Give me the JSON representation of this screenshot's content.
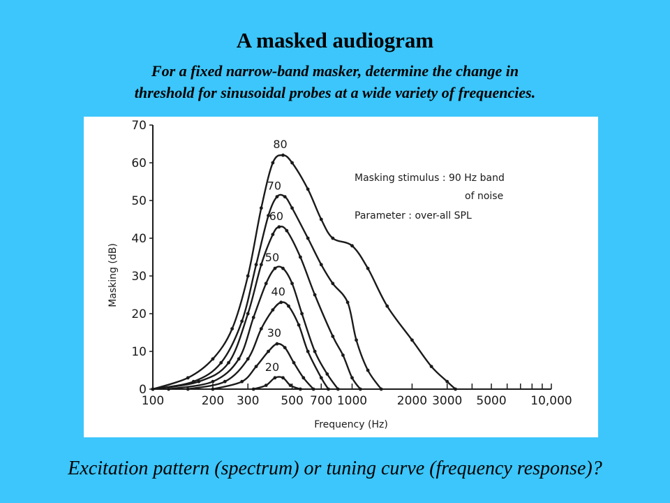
{
  "slide": {
    "title": "A masked audiogram",
    "subtitle_line1": "For a fixed narrow-band masker, determine the change in",
    "subtitle_line2": "threshold for sinusoidal probes at a wide variety of frequencies.",
    "caption": "Excitation pattern (spectrum) or tuning curve (frequency response)?"
  },
  "colors": {
    "background": "#3cc6fb",
    "panel": "#ffffff",
    "ink": "#1a1a1a"
  },
  "chart_data": {
    "type": "line",
    "xlabel": "Frequency (Hz)",
    "ylabel": "Masking (dB)",
    "x_scale": "log",
    "xlim": [
      100,
      10000
    ],
    "ylim": [
      0,
      70
    ],
    "x_ticks": [
      100,
      200,
      300,
      500,
      700,
      1000,
      2000,
      3000,
      5000,
      10000
    ],
    "x_tick_labels": [
      "100",
      "200",
      "300",
      "500",
      "700",
      "1000",
      "2000",
      "3000",
      "5000",
      "10,000"
    ],
    "y_ticks": [
      0,
      10,
      20,
      30,
      40,
      50,
      60,
      70
    ],
    "y_tick_labels": [
      "0",
      "10",
      "20",
      "30",
      "40",
      "50",
      "60",
      "70"
    ],
    "legend_text": [
      "Masking stimulus : 90 Hz band",
      "of noise",
      "Parameter : over-all SPL"
    ],
    "series": [
      {
        "name": "80",
        "points": [
          [
            100,
            0
          ],
          [
            150,
            3
          ],
          [
            200,
            8
          ],
          [
            250,
            16
          ],
          [
            300,
            30
          ],
          [
            350,
            48
          ],
          [
            400,
            60
          ],
          [
            450,
            62
          ],
          [
            500,
            60
          ],
          [
            600,
            53
          ],
          [
            700,
            45
          ],
          [
            800,
            40
          ],
          [
            1000,
            38
          ],
          [
            1200,
            32
          ],
          [
            1500,
            22
          ],
          [
            2000,
            13
          ],
          [
            2500,
            6
          ],
          [
            3000,
            2
          ],
          [
            3300,
            0
          ]
        ]
      },
      {
        "name": "70",
        "points": [
          [
            100,
            0
          ],
          [
            160,
            2
          ],
          [
            220,
            7
          ],
          [
            280,
            18
          ],
          [
            330,
            33
          ],
          [
            380,
            46
          ],
          [
            420,
            51
          ],
          [
            460,
            51
          ],
          [
            500,
            48
          ],
          [
            600,
            40
          ],
          [
            700,
            33
          ],
          [
            800,
            28
          ],
          [
            950,
            23
          ],
          [
            1050,
            13
          ],
          [
            1200,
            5
          ],
          [
            1400,
            0
          ]
        ]
      },
      {
        "name": "60",
        "points": [
          [
            100,
            0
          ],
          [
            170,
            2
          ],
          [
            240,
            7
          ],
          [
            300,
            20
          ],
          [
            350,
            33
          ],
          [
            400,
            41
          ],
          [
            430,
            43
          ],
          [
            470,
            42
          ],
          [
            550,
            35
          ],
          [
            650,
            25
          ],
          [
            800,
            14
          ],
          [
            900,
            9
          ],
          [
            1000,
            3
          ],
          [
            1100,
            0
          ]
        ]
      },
      {
        "name": "50",
        "points": [
          [
            120,
            0
          ],
          [
            200,
            2
          ],
          [
            270,
            8
          ],
          [
            320,
            19
          ],
          [
            370,
            28
          ],
          [
            410,
            32
          ],
          [
            450,
            32
          ],
          [
            500,
            28
          ],
          [
            560,
            20
          ],
          [
            650,
            10
          ],
          [
            750,
            4
          ],
          [
            850,
            0
          ]
        ]
      },
      {
        "name": "40",
        "points": [
          [
            150,
            0
          ],
          [
            230,
            2
          ],
          [
            300,
            8
          ],
          [
            350,
            16
          ],
          [
            400,
            21
          ],
          [
            440,
            23
          ],
          [
            480,
            22
          ],
          [
            540,
            17
          ],
          [
            600,
            10
          ],
          [
            700,
            3
          ],
          [
            760,
            0
          ]
        ]
      },
      {
        "name": "30",
        "points": [
          [
            200,
            0
          ],
          [
            280,
            2
          ],
          [
            330,
            6
          ],
          [
            380,
            10
          ],
          [
            420,
            12
          ],
          [
            460,
            11
          ],
          [
            510,
            7
          ],
          [
            570,
            3
          ],
          [
            640,
            0
          ]
        ]
      },
      {
        "name": "20",
        "points": [
          [
            320,
            0
          ],
          [
            370,
            1
          ],
          [
            410,
            3
          ],
          [
            450,
            3
          ],
          [
            490,
            1
          ],
          [
            550,
            0
          ]
        ]
      }
    ]
  }
}
